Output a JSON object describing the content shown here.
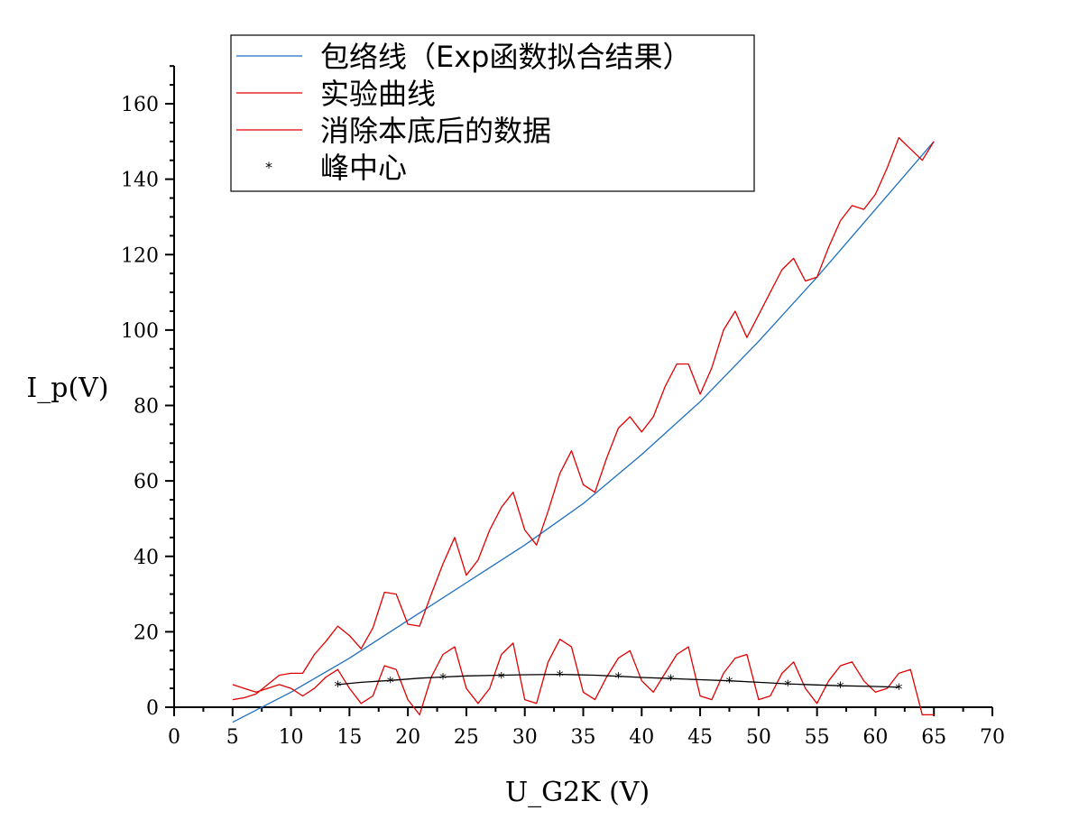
{
  "chart_data": {
    "type": "line",
    "title": "",
    "xlabel": "U_G2K (V)",
    "ylabel": "I_p(V)",
    "xlim": [
      0,
      70
    ],
    "ylim": [
      0,
      170
    ],
    "x_ticks": [
      0,
      5,
      10,
      15,
      20,
      25,
      30,
      35,
      40,
      45,
      50,
      55,
      60,
      65,
      70
    ],
    "y_ticks": [
      0,
      20,
      40,
      60,
      80,
      100,
      120,
      140,
      160
    ],
    "grid": false,
    "legend": {
      "position": "top-left",
      "entries": [
        {
          "label": "包络线（Exp函数拟合结果）",
          "color": "#1f6fbf",
          "marker": "line"
        },
        {
          "label": "实验曲线",
          "color": "#e00000",
          "marker": "line"
        },
        {
          "label": "消除本底后的数据",
          "color": "#e00000",
          "marker": "line"
        },
        {
          "label": "峰中心",
          "color": "#000000",
          "marker": "star"
        }
      ]
    },
    "series": [
      {
        "name": "包络线（Exp函数拟合结果）",
        "color": "#1f6fbf",
        "x": [
          5,
          10,
          15,
          20,
          25,
          30,
          35,
          40,
          45,
          50,
          55,
          60,
          65
        ],
        "y": [
          -4,
          4,
          13,
          23,
          33,
          43,
          54,
          67,
          81,
          97,
          114,
          132,
          150
        ]
      },
      {
        "name": "实验曲线",
        "color": "#e00000",
        "x": [
          5,
          6,
          7,
          8,
          9,
          10,
          11,
          12,
          13,
          14,
          15,
          16,
          17,
          18,
          19,
          20,
          21,
          22,
          23,
          24,
          25,
          26,
          27,
          28,
          29,
          30,
          31,
          32,
          33,
          34,
          35,
          36,
          37,
          38,
          39,
          40,
          41,
          42,
          43,
          44,
          45,
          46,
          47,
          48,
          49,
          50,
          51,
          52,
          53,
          54,
          55,
          56,
          57,
          58,
          59,
          60,
          61,
          62,
          63,
          64,
          65
        ],
        "y": [
          2,
          2.5,
          3.5,
          6,
          8.5,
          9,
          9,
          14,
          17.5,
          21.5,
          19,
          15.5,
          21,
          30.5,
          30,
          22,
          21.5,
          30,
          38,
          45,
          35,
          39,
          47,
          53,
          57,
          47,
          43,
          52,
          62,
          68,
          59,
          57,
          66,
          74,
          77,
          73,
          77,
          85,
          91,
          91,
          83,
          90,
          100,
          105,
          98,
          104,
          110,
          116,
          119,
          113,
          114,
          122,
          129,
          133,
          132,
          136,
          143,
          151,
          148,
          145,
          150
        ]
      },
      {
        "name": "消除本底后的数据",
        "color": "#e00000",
        "x": [
          5,
          6,
          7,
          8,
          9,
          10,
          11,
          12,
          13,
          14,
          15,
          16,
          17,
          18,
          19,
          20,
          21,
          22,
          23,
          24,
          25,
          26,
          27,
          28,
          29,
          30,
          31,
          32,
          33,
          34,
          35,
          36,
          37,
          38,
          39,
          40,
          41,
          42,
          43,
          44,
          45,
          46,
          47,
          48,
          49,
          50,
          51,
          52,
          53,
          54,
          55,
          56,
          57,
          58,
          59,
          60,
          61,
          62,
          63,
          64,
          65
        ],
        "y": [
          6,
          5,
          4,
          5,
          6,
          5,
          3,
          5,
          8,
          10,
          5,
          1,
          3,
          11,
          10,
          2,
          -2,
          8,
          14,
          16,
          5,
          1,
          5,
          14,
          17,
          2,
          1,
          12,
          18,
          16,
          4,
          2,
          8,
          13,
          15,
          7,
          4,
          9,
          14,
          16,
          3,
          2,
          9,
          13,
          14,
          2,
          3,
          9,
          12,
          5,
          1,
          7,
          11,
          12,
          7,
          4,
          5,
          9,
          10,
          -2,
          -2
        ]
      },
      {
        "name": "峰中心",
        "color": "#000000",
        "marker": "star",
        "x": [
          14,
          18.5,
          23,
          28,
          33,
          38,
          42.5,
          47.5,
          52.5,
          57,
          62
        ],
        "y": [
          6,
          7,
          8,
          8.3,
          8.7,
          8.2,
          7.6,
          7,
          6.2,
          5.7,
          5.3
        ]
      },
      {
        "name": "",
        "color": "#000000",
        "x": [
          14,
          16,
          18.5,
          21,
          23,
          25,
          28,
          30,
          33,
          36,
          38,
          40,
          42.5,
          45,
          47.5,
          50,
          52.5,
          55,
          57,
          60,
          62
        ],
        "y": [
          6,
          6.6,
          7.1,
          7.7,
          8,
          8.3,
          8.5,
          8.6,
          8.7,
          8.5,
          8.2,
          7.9,
          7.6,
          7.3,
          7,
          6.6,
          6.2,
          5.9,
          5.7,
          5.5,
          5.3
        ]
      }
    ]
  }
}
